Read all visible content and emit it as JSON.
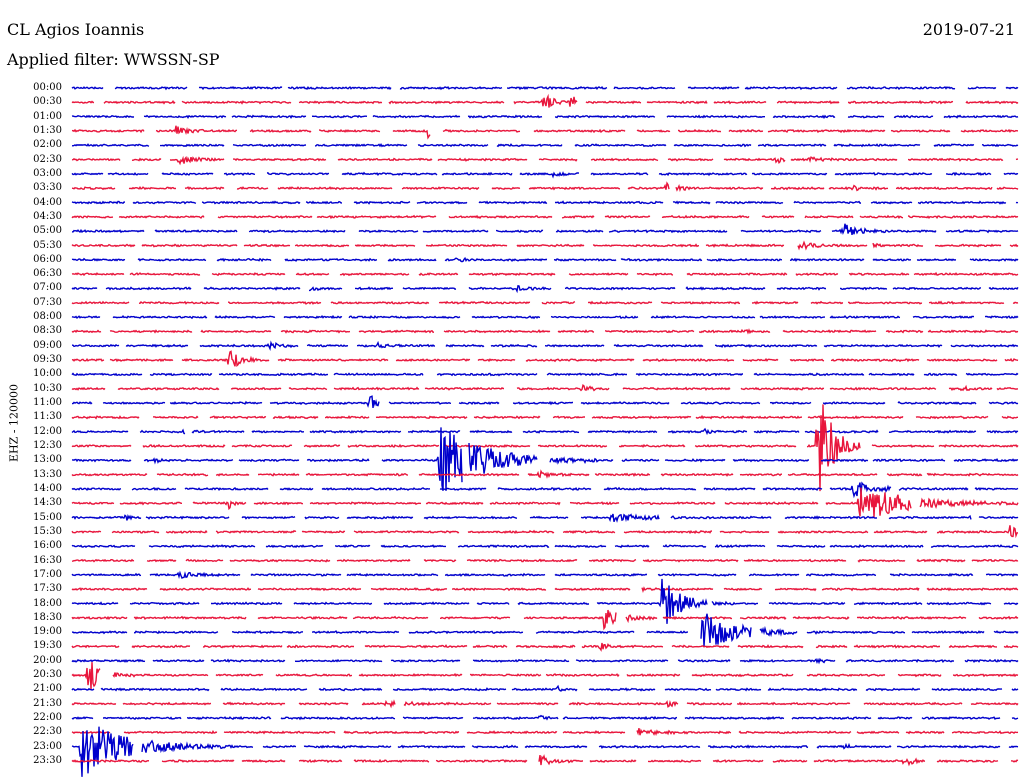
{
  "header": {
    "station": "CL Agios Ioannis",
    "date": "2019-07-21",
    "filter": "Applied filter: WWSSN-SP"
  },
  "channel_label": "EHZ - 120000",
  "colors": {
    "trace_a": "#0000cc",
    "trace_b": "#e8163c",
    "background": "#ffffff",
    "text": "#000000"
  },
  "rows": [
    {
      "time": "00:00",
      "color": "blue"
    },
    {
      "time": "00:30",
      "color": "red"
    },
    {
      "time": "01:00",
      "color": "blue"
    },
    {
      "time": "01:30",
      "color": "red"
    },
    {
      "time": "02:00",
      "color": "blue"
    },
    {
      "time": "02:30",
      "color": "red"
    },
    {
      "time": "03:00",
      "color": "blue"
    },
    {
      "time": "03:30",
      "color": "red"
    },
    {
      "time": "04:00",
      "color": "blue"
    },
    {
      "time": "04:30",
      "color": "red"
    },
    {
      "time": "05:00",
      "color": "blue"
    },
    {
      "time": "05:30",
      "color": "red"
    },
    {
      "time": "06:00",
      "color": "blue"
    },
    {
      "time": "06:30",
      "color": "red"
    },
    {
      "time": "07:00",
      "color": "blue"
    },
    {
      "time": "07:30",
      "color": "red"
    },
    {
      "time": "08:00",
      "color": "blue"
    },
    {
      "time": "08:30",
      "color": "red"
    },
    {
      "time": "09:00",
      "color": "blue"
    },
    {
      "time": "09:30",
      "color": "red"
    },
    {
      "time": "10:00",
      "color": "blue"
    },
    {
      "time": "10:30",
      "color": "red"
    },
    {
      "time": "11:00",
      "color": "blue"
    },
    {
      "time": "11:30",
      "color": "red"
    },
    {
      "time": "12:00",
      "color": "blue"
    },
    {
      "time": "12:30",
      "color": "red"
    },
    {
      "time": "13:00",
      "color": "blue"
    },
    {
      "time": "13:30",
      "color": "red"
    },
    {
      "time": "14:00",
      "color": "blue"
    },
    {
      "time": "14:30",
      "color": "red"
    },
    {
      "time": "15:00",
      "color": "blue"
    },
    {
      "time": "15:30",
      "color": "red"
    },
    {
      "time": "16:00",
      "color": "blue"
    },
    {
      "time": "16:30",
      "color": "red"
    },
    {
      "time": "17:00",
      "color": "blue"
    },
    {
      "time": "17:30",
      "color": "red"
    },
    {
      "time": "18:00",
      "color": "blue"
    },
    {
      "time": "18:30",
      "color": "red"
    },
    {
      "time": "19:00",
      "color": "blue"
    },
    {
      "time": "19:30",
      "color": "red"
    },
    {
      "time": "20:00",
      "color": "blue"
    },
    {
      "time": "20:30",
      "color": "red"
    },
    {
      "time": "21:00",
      "color": "blue"
    },
    {
      "time": "21:30",
      "color": "red"
    },
    {
      "time": "22:00",
      "color": "blue"
    },
    {
      "time": "22:30",
      "color": "red"
    },
    {
      "time": "23:00",
      "color": "blue"
    },
    {
      "time": "23:30",
      "color": "red"
    }
  ]
}
